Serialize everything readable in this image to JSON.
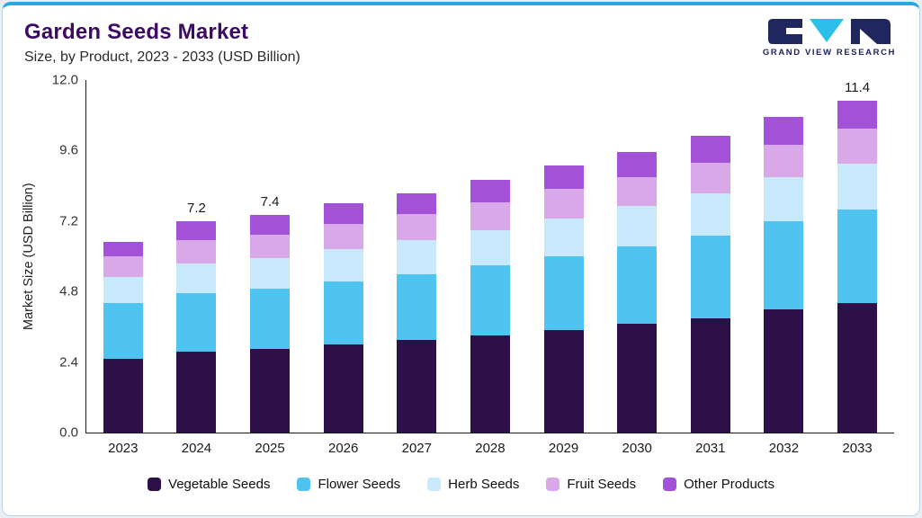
{
  "header": {
    "title": "Garden Seeds Market",
    "subtitle": "Size, by Product, 2023 - 2033 (USD Billion)",
    "brand": "GRAND VIEW RESEARCH"
  },
  "chart_data": {
    "type": "bar",
    "stacked": true,
    "title": "Garden Seeds Market Size, by Product, 2023 - 2033 (USD Billion)",
    "xlabel": "",
    "ylabel": "Market Size (USD Billion)",
    "ylim": [
      0,
      12
    ],
    "yticks": [
      0.0,
      2.4,
      4.8,
      7.2,
      9.6,
      12.0
    ],
    "grid": false,
    "legend_position": "bottom",
    "categories": [
      2023,
      2024,
      2025,
      2026,
      2027,
      2028,
      2029,
      2030,
      2031,
      2032,
      2033
    ],
    "series": [
      {
        "name": "Vegetable Seeds",
        "color": "#2d1048",
        "values": [
          2.5,
          2.75,
          2.85,
          3.0,
          3.15,
          3.3,
          3.5,
          3.7,
          3.9,
          4.2,
          4.45
        ]
      },
      {
        "name": "Flower Seeds",
        "color": "#4fc4f0",
        "values": [
          1.9,
          2.0,
          2.05,
          2.15,
          2.25,
          2.4,
          2.5,
          2.65,
          2.8,
          3.0,
          3.2
        ]
      },
      {
        "name": "Herb Seeds",
        "color": "#c8e9fb",
        "values": [
          0.9,
          1.0,
          1.05,
          1.1,
          1.15,
          1.2,
          1.3,
          1.35,
          1.45,
          1.5,
          1.6
        ]
      },
      {
        "name": "Fruit Seeds",
        "color": "#d8a8e8",
        "values": [
          0.7,
          0.8,
          0.8,
          0.85,
          0.9,
          0.95,
          1.0,
          1.0,
          1.05,
          1.1,
          1.2
        ]
      },
      {
        "name": "Other Products",
        "color": "#a352d8",
        "values": [
          0.5,
          0.65,
          0.65,
          0.7,
          0.7,
          0.75,
          0.8,
          0.85,
          0.9,
          0.95,
          0.95
        ]
      }
    ],
    "value_labels": {
      "2024": "7.2",
      "2025": "7.4",
      "2033": "11.4"
    }
  }
}
